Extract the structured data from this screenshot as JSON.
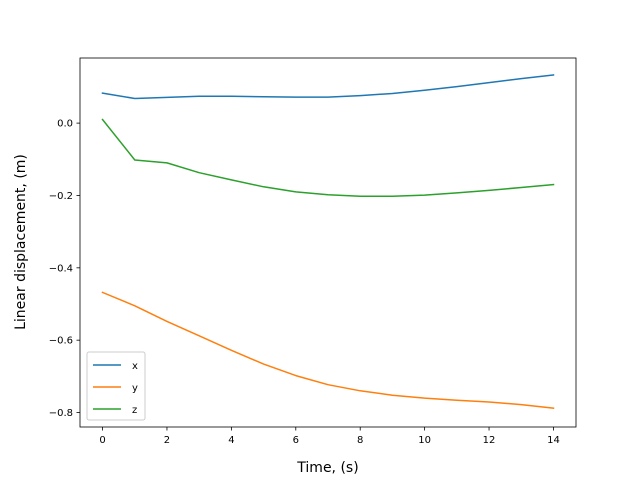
{
  "chart_data": {
    "type": "line",
    "title": "",
    "xlabel": "Time, (s)",
    "ylabel": "Linear displacement, (m)",
    "xlim": [
      -0.7,
      14.7
    ],
    "ylim": [
      -0.84,
      0.18
    ],
    "xticks": [
      0,
      2,
      4,
      6,
      8,
      10,
      12,
      14
    ],
    "yticks": [
      -0.8,
      -0.6,
      -0.4,
      -0.2,
      0.0
    ],
    "ytick_labels": [
      "−0.8",
      "−0.6",
      "−0.4",
      "−0.2",
      "0.0"
    ],
    "grid": false,
    "legend_position": "lower-left",
    "x": [
      0,
      1,
      2,
      3,
      4,
      5,
      6,
      7,
      8,
      9,
      10,
      11,
      12,
      13,
      14
    ],
    "series": [
      {
        "name": "x",
        "color": "#1f77b4",
        "values": [
          0.083,
          0.068,
          0.071,
          0.074,
          0.074,
          0.073,
          0.072,
          0.072,
          0.076,
          0.082,
          0.091,
          0.101,
          0.112,
          0.123,
          0.133
        ]
      },
      {
        "name": "y",
        "color": "#ff7f0e",
        "values": [
          -0.468,
          -0.505,
          -0.548,
          -0.588,
          -0.628,
          -0.666,
          -0.698,
          -0.723,
          -0.74,
          -0.752,
          -0.76,
          -0.766,
          -0.771,
          -0.778,
          -0.788
        ]
      },
      {
        "name": "z",
        "color": "#2ca02c",
        "values": [
          0.01,
          -0.102,
          -0.11,
          -0.137,
          -0.157,
          -0.176,
          -0.19,
          -0.198,
          -0.202,
          -0.202,
          -0.199,
          -0.193,
          -0.186,
          -0.178,
          -0.17
        ]
      }
    ]
  }
}
